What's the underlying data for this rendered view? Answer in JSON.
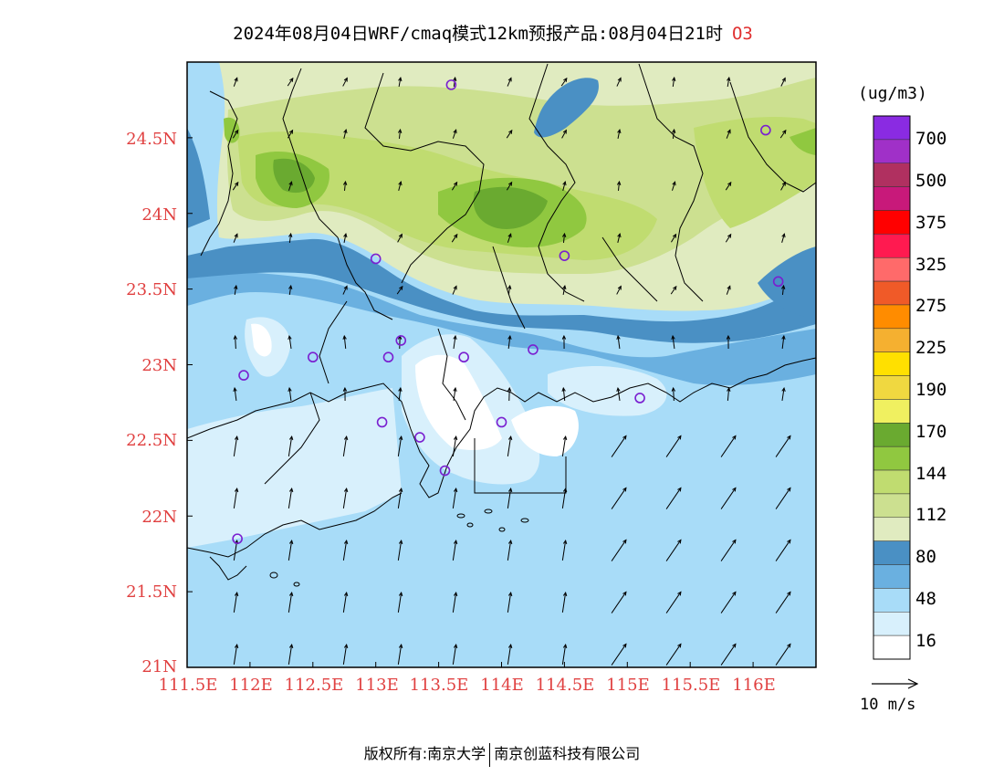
{
  "title": {
    "text": "2024年08月04日WRF/cmaq模式12km预报产品:08月04日21时",
    "species": "O3"
  },
  "axes": {
    "lat_labels": [
      "24.5N",
      "24N",
      "23.5N",
      "23N",
      "22.5N",
      "22N",
      "21.5N",
      "21N"
    ],
    "lon_labels": [
      "111.5E",
      "112E",
      "112.5E",
      "113E",
      "113.5E",
      "114E",
      "114.5E",
      "115E",
      "115.5E",
      "116E"
    ]
  },
  "colorbar": {
    "units": "(ug/m3)",
    "labels": [
      "700",
      "500",
      "375",
      "325",
      "275",
      "225",
      "190",
      "170",
      "144",
      "112",
      "80",
      "48",
      "16"
    ],
    "colors": [
      "#8a2be2",
      "#a030c8",
      "#b03060",
      "#c8197a",
      "#ff0000",
      "#ff1a50",
      "#ff6a6a",
      "#f05a28",
      "#ff8c00",
      "#f5b030",
      "#ffe000",
      "#f0d840",
      "#f0f060",
      "#6aaa30",
      "#90c840",
      "#c0dc70",
      "#cce090",
      "#e0ebc0",
      "#4a90c4",
      "#6ab0e0",
      "#a8dcf8",
      "#d8f0fc",
      "#ffffff"
    ]
  },
  "ref_vector": {
    "label": "10 m/s"
  },
  "footer": {
    "left": "版权所有:南京大学",
    "right": "南京创蓝科技有限公司"
  },
  "stations": [
    {
      "lon": 113.6,
      "lat": 24.85
    },
    {
      "lon": 116.1,
      "lat": 24.55
    },
    {
      "lon": 113.0,
      "lat": 23.7
    },
    {
      "lon": 114.5,
      "lat": 23.72
    },
    {
      "lon": 116.2,
      "lat": 23.55
    },
    {
      "lon": 112.5,
      "lat": 23.05
    },
    {
      "lon": 113.1,
      "lat": 23.05
    },
    {
      "lon": 113.2,
      "lat": 23.16
    },
    {
      "lon": 113.7,
      "lat": 23.05
    },
    {
      "lon": 114.25,
      "lat": 23.1
    },
    {
      "lon": 111.95,
      "lat": 22.93
    },
    {
      "lon": 113.05,
      "lat": 22.62
    },
    {
      "lon": 113.35,
      "lat": 22.52
    },
    {
      "lon": 113.55,
      "lat": 22.3
    },
    {
      "lon": 114.0,
      "lat": 22.62
    },
    {
      "lon": 115.1,
      "lat": 22.78
    },
    {
      "lon": 111.9,
      "lat": 21.85
    }
  ]
}
